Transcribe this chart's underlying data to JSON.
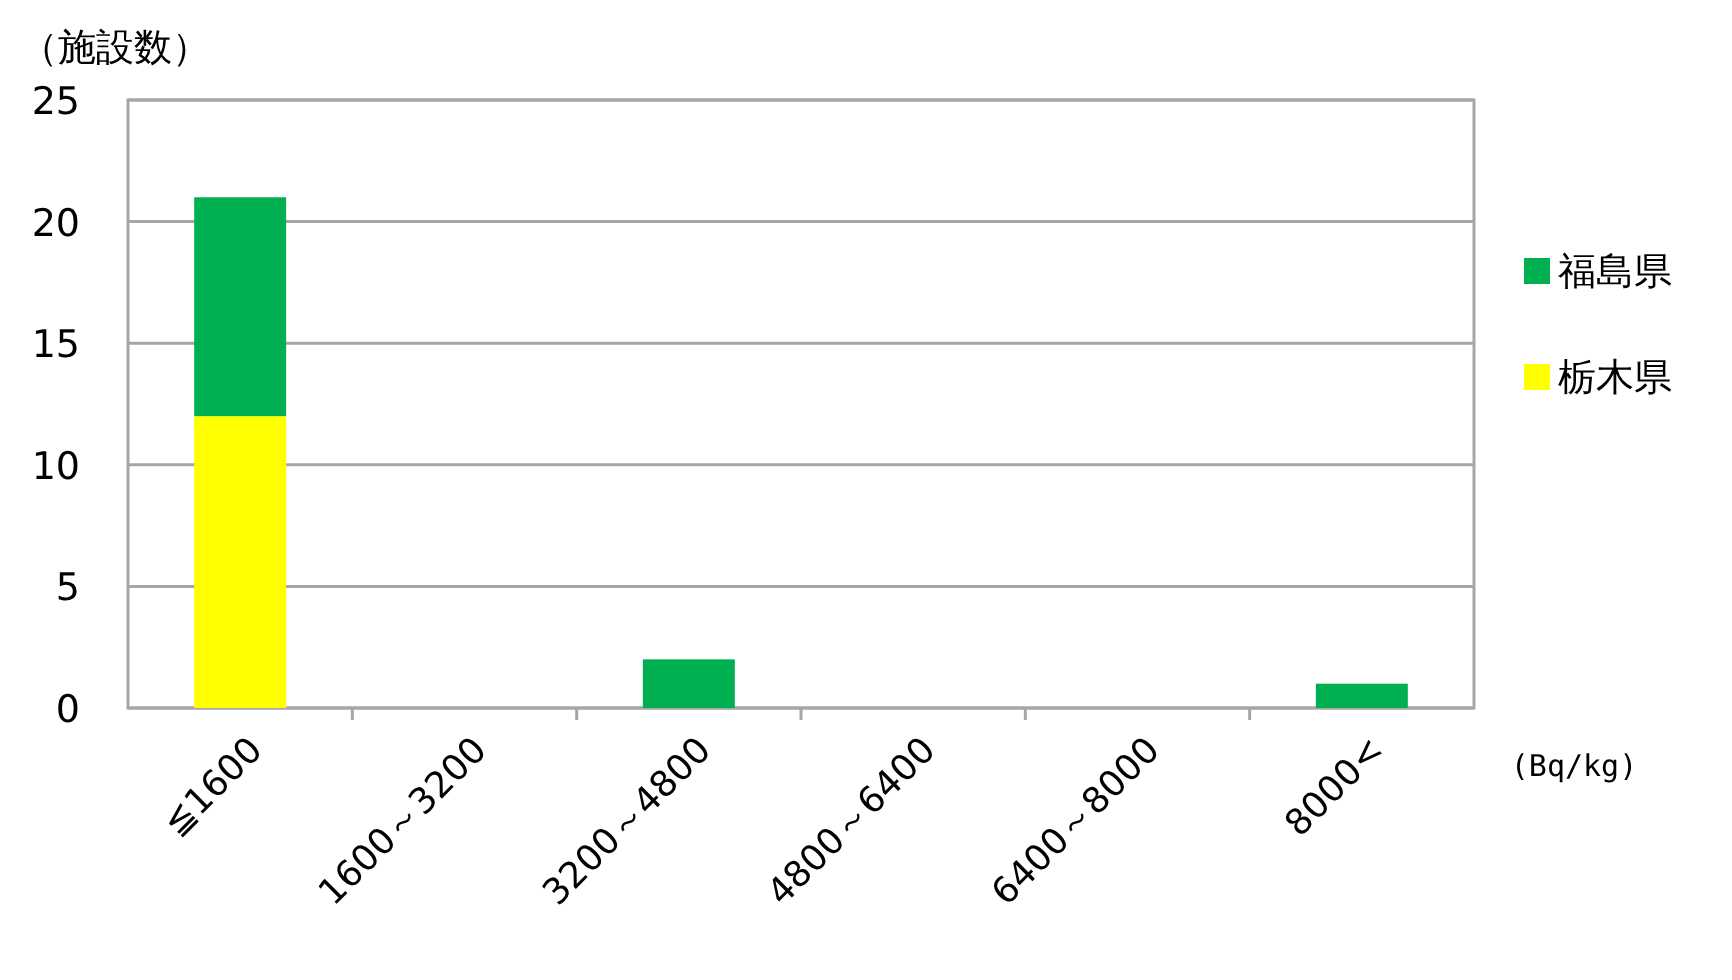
{
  "chart_data": {
    "type": "bar",
    "stacked": true,
    "ylabel": "（施設数）",
    "xlabel": "(Bq/kg)",
    "categories": [
      "≦1600",
      "1600～3200",
      "3200～4800",
      "4800～6400",
      "6400～8000",
      "8000<"
    ],
    "series": [
      {
        "name": "栃木県",
        "color": "#ffff00",
        "values": [
          12,
          0,
          0,
          0,
          0,
          0
        ]
      },
      {
        "name": "福島県",
        "color": "#00b050",
        "values": [
          9,
          0,
          2,
          0,
          0,
          1
        ]
      }
    ],
    "ylim": [
      0,
      25
    ],
    "yticks": [
      0,
      5,
      10,
      15,
      20,
      25
    ],
    "grid": "y",
    "legend": "right"
  }
}
